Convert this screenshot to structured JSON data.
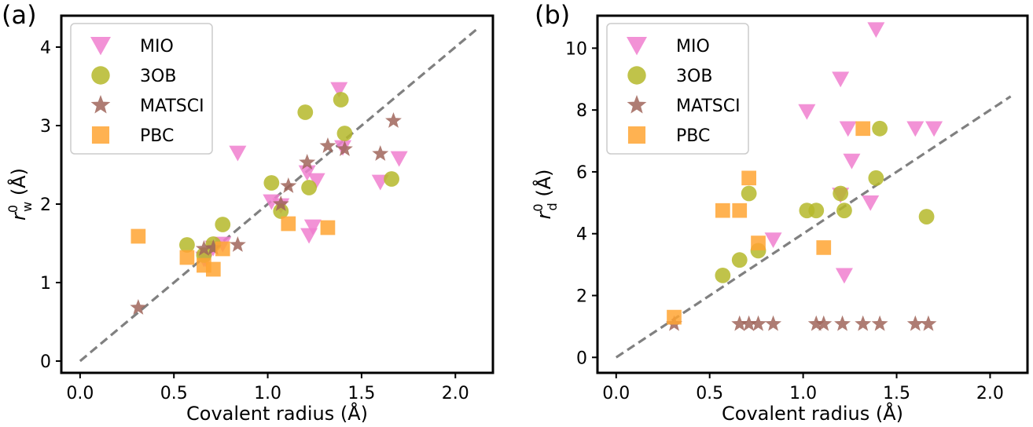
{
  "chart_data": [
    {
      "panel": "(a)",
      "type": "scatter",
      "xlabel": "Covalent radius (Å)",
      "ylabel": {
        "base": "r",
        "sup": "0",
        "sub": "w",
        "unit": " (Å)"
      },
      "xlim": [
        -0.1,
        2.2
      ],
      "ylim": [
        -0.15,
        4.4
      ],
      "xticks": [
        "0.0",
        "0.5",
        "1.0",
        "1.5",
        "2.0"
      ],
      "xtick_values": [
        0,
        0.5,
        1.0,
        1.5,
        2.0
      ],
      "yticks": [
        "0",
        "1",
        "2",
        "3",
        "4"
      ],
      "ytick_values": [
        0,
        1,
        2,
        3,
        4
      ],
      "legend_position": "top-left",
      "reference_line": {
        "slope": 2.0,
        "style": "dashed",
        "color": "#808080"
      },
      "series": [
        {
          "name": "MIO",
          "marker": "triangle-down",
          "color": "#f07fcf",
          "points": [
            [
              1.38,
              3.46
            ],
            [
              0.84,
              2.65
            ],
            [
              1.6,
              2.28
            ],
            [
              1.7,
              2.58
            ],
            [
              1.21,
              2.4
            ],
            [
              1.26,
              2.3
            ],
            [
              1.02,
              2.03
            ],
            [
              1.07,
              1.98
            ],
            [
              1.24,
              1.71
            ],
            [
              1.22,
              1.6
            ],
            [
              0.76,
              1.49
            ],
            [
              0.71,
              1.44
            ],
            [
              0.67,
              1.3
            ],
            [
              0.66,
              1.3
            ],
            [
              1.4,
              2.72
            ]
          ]
        },
        {
          "name": "3OB",
          "marker": "circle",
          "color": "#b5b82a",
          "points": [
            [
              1.2,
              3.17
            ],
            [
              1.39,
              3.33
            ],
            [
              1.41,
              2.9
            ],
            [
              1.66,
              2.32
            ],
            [
              1.02,
              2.27
            ],
            [
              1.22,
              2.21
            ],
            [
              1.07,
              1.91
            ],
            [
              0.76,
              1.74
            ],
            [
              0.57,
              1.48
            ],
            [
              0.71,
              1.49
            ],
            [
              0.66,
              1.35
            ]
          ]
        },
        {
          "name": "MATSCI",
          "marker": "star",
          "color": "#a0655a",
          "points": [
            [
              1.67,
              3.06
            ],
            [
              1.32,
              2.74
            ],
            [
              1.41,
              2.7
            ],
            [
              1.6,
              2.64
            ],
            [
              1.21,
              2.53
            ],
            [
              1.11,
              2.23
            ],
            [
              1.07,
              2.0
            ],
            [
              0.84,
              1.48
            ],
            [
              0.71,
              1.44
            ],
            [
              0.66,
              1.43
            ],
            [
              0.31,
              0.68
            ]
          ]
        },
        {
          "name": "PBC",
          "marker": "square",
          "color": "#ffa533",
          "points": [
            [
              0.31,
              1.59
            ],
            [
              0.57,
              1.32
            ],
            [
              0.66,
              1.22
            ],
            [
              0.71,
              1.17
            ],
            [
              0.76,
              1.43
            ],
            [
              1.11,
              1.75
            ],
            [
              1.32,
              1.7
            ]
          ]
        }
      ]
    },
    {
      "panel": "(b)",
      "type": "scatter",
      "xlabel": "Covalent radius (Å)",
      "ylabel": {
        "base": "r",
        "sup": "0",
        "sub": "d",
        "unit": " (Å)"
      },
      "xlim": [
        -0.1,
        2.2
      ],
      "ylim": [
        -0.5,
        11.05
      ],
      "xticks": [
        "0.0",
        "0.5",
        "1.0",
        "1.5",
        "2.0"
      ],
      "xtick_values": [
        0,
        0.5,
        1.0,
        1.5,
        2.0
      ],
      "yticks": [
        "0",
        "2",
        "4",
        "6",
        "8",
        "10"
      ],
      "ytick_values": [
        0,
        2,
        4,
        6,
        8,
        10
      ],
      "legend_position": "top-left",
      "reference_line": {
        "slope": 4.0,
        "style": "dashed",
        "color": "#808080"
      },
      "series": [
        {
          "name": "MIO",
          "marker": "triangle-down",
          "color": "#f07fcf",
          "points": [
            [
              1.39,
              10.6
            ],
            [
              1.2,
              9.0
            ],
            [
              1.02,
              7.95
            ],
            [
              1.24,
              7.4
            ],
            [
              1.6,
              7.4
            ],
            [
              1.7,
              7.4
            ],
            [
              1.26,
              6.35
            ],
            [
              1.36,
              5.0
            ],
            [
              1.2,
              5.25
            ],
            [
              0.84,
              3.8
            ],
            [
              1.22,
              2.65
            ]
          ]
        },
        {
          "name": "3OB",
          "marker": "circle",
          "color": "#b5b82a",
          "points": [
            [
              1.41,
              7.4
            ],
            [
              0.71,
              5.3
            ],
            [
              1.39,
              5.8
            ],
            [
              1.2,
              5.3
            ],
            [
              1.02,
              4.75
            ],
            [
              1.07,
              4.75
            ],
            [
              1.22,
              4.75
            ],
            [
              1.66,
              4.55
            ],
            [
              0.76,
              3.45
            ],
            [
              0.66,
              3.15
            ],
            [
              0.57,
              2.65
            ]
          ]
        },
        {
          "name": "MATSCI",
          "marker": "star",
          "color": "#a0655a",
          "points": [
            [
              0.31,
              1.08
            ],
            [
              0.66,
              1.08
            ],
            [
              0.71,
              1.08
            ],
            [
              0.76,
              1.08
            ],
            [
              0.84,
              1.08
            ],
            [
              1.07,
              1.08
            ],
            [
              1.11,
              1.08
            ],
            [
              1.21,
              1.08
            ],
            [
              1.32,
              1.08
            ],
            [
              1.41,
              1.08
            ],
            [
              1.6,
              1.08
            ],
            [
              1.67,
              1.08
            ]
          ]
        },
        {
          "name": "PBC",
          "marker": "square",
          "color": "#ffa533",
          "points": [
            [
              1.32,
              7.4
            ],
            [
              0.71,
              5.8
            ],
            [
              0.57,
              4.75
            ],
            [
              0.66,
              4.75
            ],
            [
              0.76,
              3.7
            ],
            [
              1.11,
              3.55
            ],
            [
              0.31,
              1.3
            ]
          ]
        }
      ]
    }
  ]
}
